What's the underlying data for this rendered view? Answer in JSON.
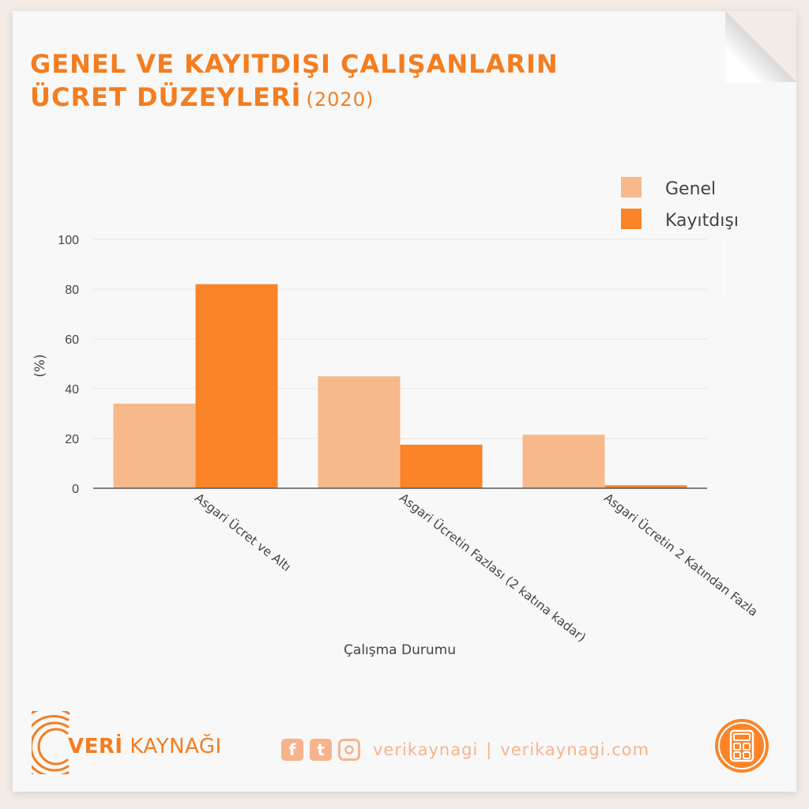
{
  "header": {
    "title_line1": "GENEL VE KAYITDIŞI ÇALIŞANLARIN",
    "title_line2": "ÜCRET DÜZEYLERİ",
    "title_year": "(2020)"
  },
  "colors": {
    "genel": "#f7b98b",
    "kayitdisi": "#fb8428",
    "accent": "#f47d20",
    "axis": "#555555",
    "grid": "#e6e6e6",
    "text": "#444444"
  },
  "chart_data": {
    "type": "bar",
    "categories": [
      "Asgari Ücret ve Altı",
      "Asgari Ücretin Fazlası (2 katına kadar)",
      "Asgari Ücretin 2 Katından Fazla"
    ],
    "series": [
      {
        "name": "Genel",
        "values": [
          34,
          45,
          21.5
        ]
      },
      {
        "name": "Kayıtdışı",
        "values": [
          82,
          17.5,
          1.2
        ]
      }
    ],
    "xlabel": "Çalışma Durumu",
    "ylabel": "(%)",
    "ylim": [
      0,
      100
    ],
    "yticks": [
      0,
      20,
      40,
      60,
      80,
      100
    ],
    "grid": true,
    "legend_position": "top-right"
  },
  "footer": {
    "brand_first": "VERİ",
    "brand_second": "KAYNAĞI",
    "social_facebook_glyph": "f",
    "social_twitter_glyph": "t",
    "social_handle": "verikaynagi",
    "social_separator": "|",
    "social_site": "verikaynagi.com"
  },
  "icons": {
    "facebook": "facebook-icon",
    "twitter": "twitter-icon",
    "instagram": "instagram-icon",
    "logo": "concentric-arcs-logo-icon",
    "calculator": "calculator-icon"
  }
}
